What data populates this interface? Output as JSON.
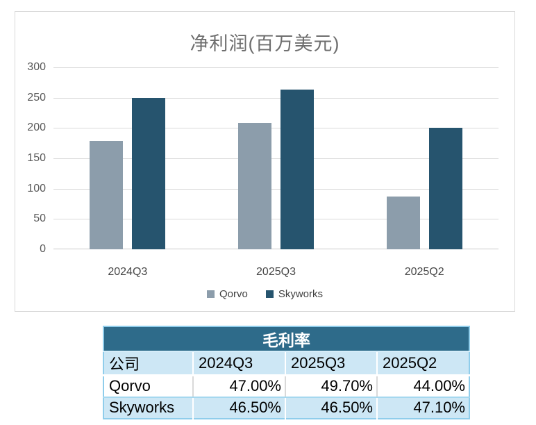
{
  "chart_data": [
    {
      "type": "bar",
      "title": "净利润(百万美元)",
      "categories": [
        "2024Q3",
        "2025Q3",
        "2025Q2"
      ],
      "series": [
        {
          "name": "Qorvo",
          "color": "#8c9dab",
          "values": [
            179,
            208,
            87
          ]
        },
        {
          "name": "Skyworks",
          "color": "#26546e",
          "values": [
            250,
            263,
            200
          ]
        }
      ],
      "ylim": [
        0,
        300
      ],
      "yticks": [
        300,
        250,
        200,
        150,
        100,
        50,
        0
      ],
      "grid": true,
      "legend_position": "bottom",
      "colors": {
        "gridline": "#d9d9d9",
        "title_text": "#6e6e6e",
        "panel_border": "#d9d9d9"
      }
    },
    {
      "type": "table",
      "title": "毛利率",
      "columns": [
        "公司",
        "2024Q3",
        "2025Q3",
        "2025Q2"
      ],
      "rows": [
        [
          "Qorvo",
          "47.00%",
          "49.70%",
          "44.00%"
        ],
        [
          "Skyworks",
          "46.50%",
          "46.50%",
          "47.10%"
        ]
      ],
      "colors": {
        "title_bg": "#2e6b8a",
        "title_text": "#ffffff",
        "band_bg": "#cde7f5",
        "border": "#8fcdeb"
      }
    }
  ]
}
